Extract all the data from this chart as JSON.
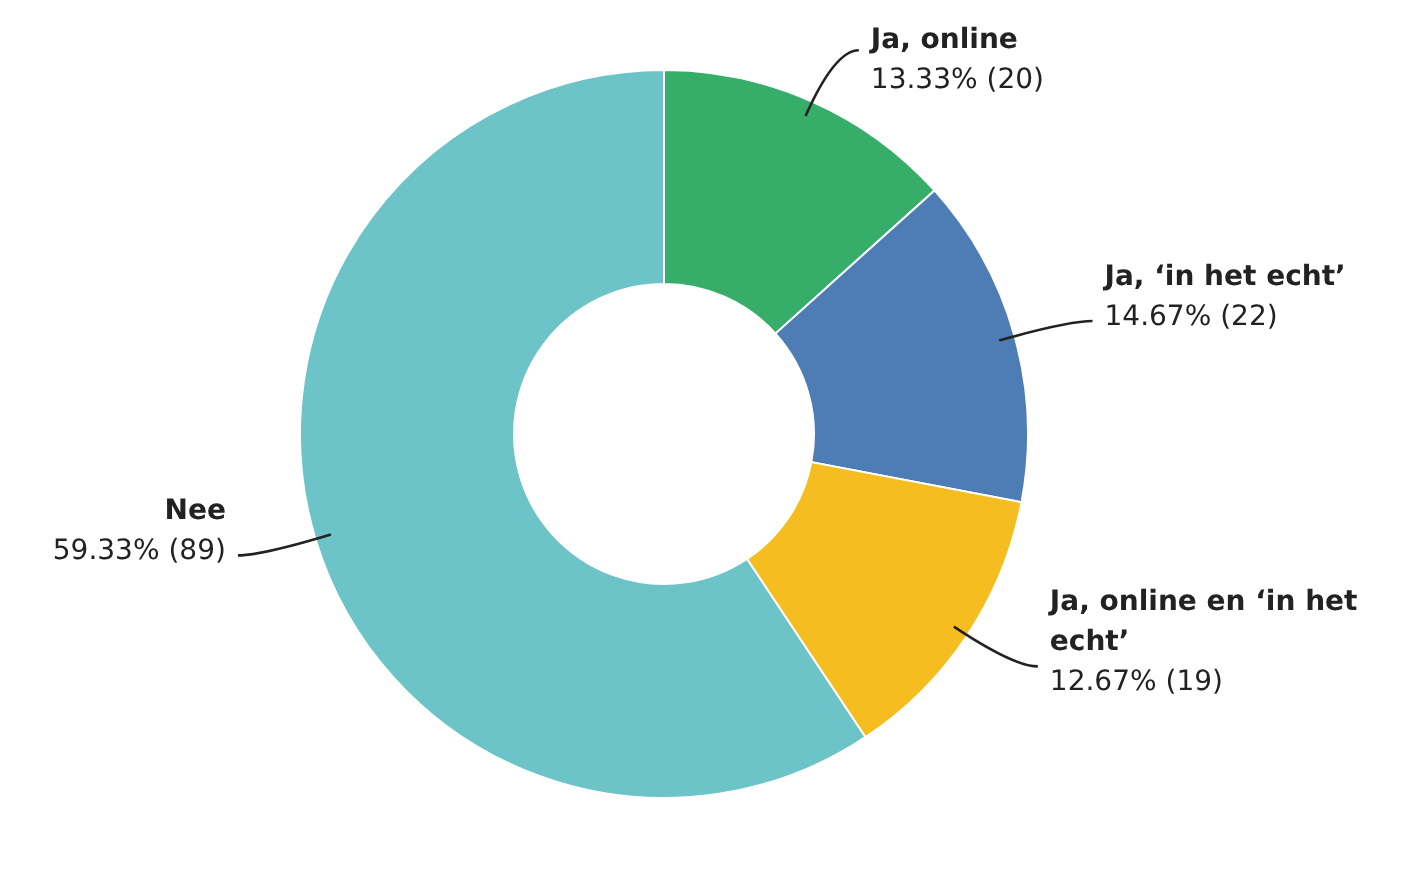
{
  "chart_data": {
    "type": "donut",
    "categories": [
      "Ja, online",
      "Ja, ‘in het echt’",
      "Ja, online en ‘in het echt’",
      "Nee"
    ],
    "values": [
      20,
      22,
      19,
      89
    ],
    "value_labels": [
      "13.33% (20)",
      "14.67% (22)",
      "12.67% (19)",
      "59.33% (89)"
    ],
    "colors": [
      "#36ae6a",
      "#4e7db5",
      "#f5bd1f",
      "#6cc3c8"
    ]
  }
}
